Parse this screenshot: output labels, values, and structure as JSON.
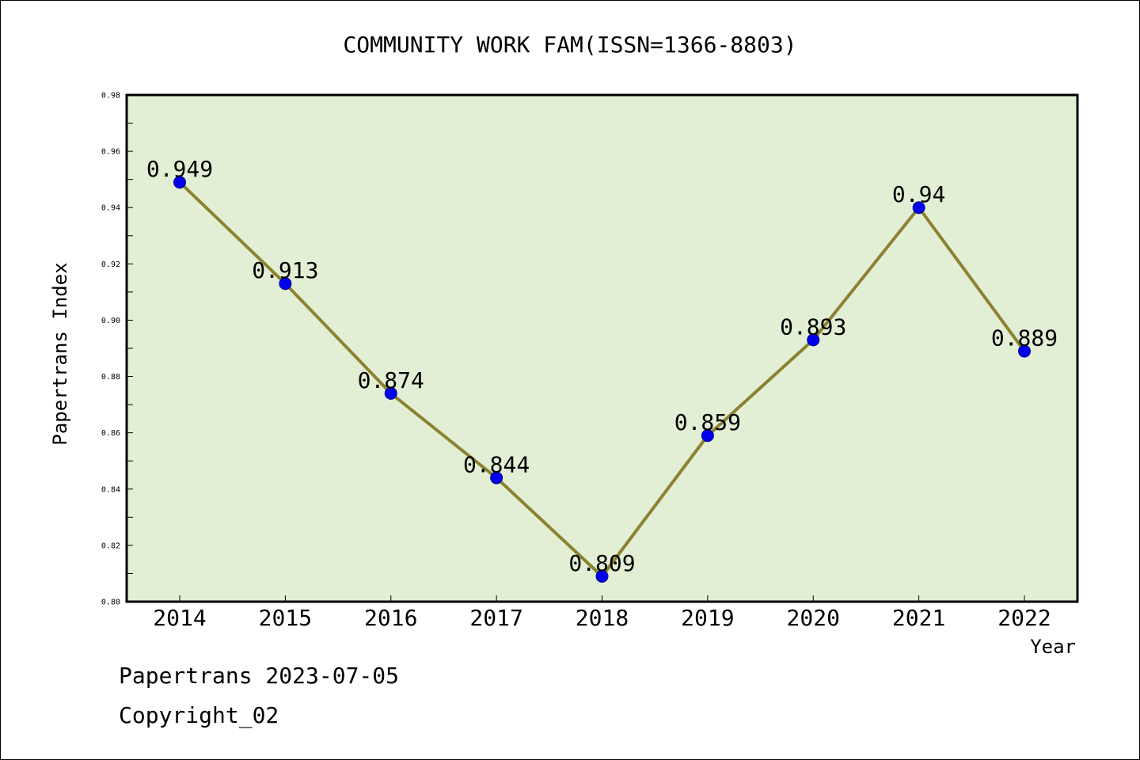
{
  "chart_data": {
    "type": "line",
    "title": "COMMUNITY WORK FAM(ISSN=1366-8803)",
    "xlabel": "Year",
    "ylabel": "Papertrans Index",
    "categories": [
      "2014",
      "2015",
      "2016",
      "2017",
      "2018",
      "2019",
      "2020",
      "2021",
      "2022"
    ],
    "series": [
      {
        "values": [
          0.949,
          0.913,
          0.874,
          0.844,
          0.809,
          0.859,
          0.893,
          0.94,
          0.889
        ]
      }
    ],
    "data_labels": [
      "0.949",
      "0.913",
      "0.874",
      "0.844",
      "0.809",
      "0.859",
      "0.893",
      "0.94",
      "0.889"
    ],
    "ylim": [
      0.8,
      0.98
    ],
    "yticks": [
      "0.80",
      "0.82",
      "0.84",
      "0.86",
      "0.88",
      "0.90",
      "0.92",
      "0.94",
      "0.96",
      "0.98"
    ],
    "grid": false,
    "legend": "none",
    "colors": {
      "plot_background": "#e2efd5",
      "line": "#8c8232",
      "marker": "#0000ee",
      "frame": "#000000"
    }
  },
  "footer": {
    "line1": "Papertrans 2023-07-05",
    "line2": "Copyright_02"
  }
}
